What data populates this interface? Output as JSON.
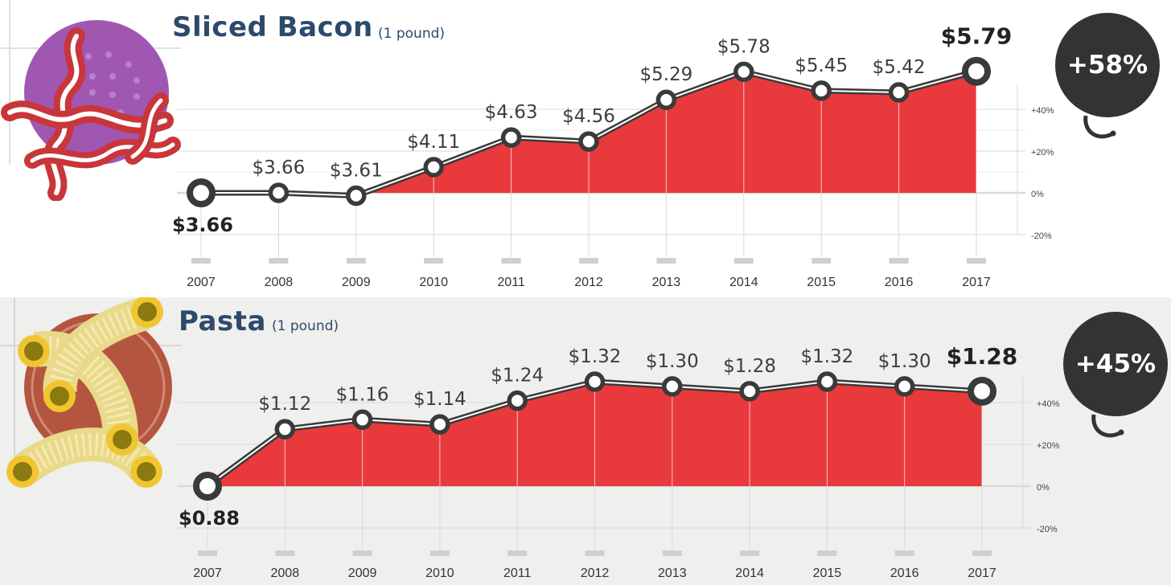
{
  "colors": {
    "fill": "#e83a3d",
    "line": "#3a3a3a",
    "title": "#2d4a6b",
    "badge": "#333333",
    "grid": "#d9d9d9"
  },
  "chart_data": [
    {
      "type": "area",
      "title": "Sliced Bacon",
      "subtitle": "(1 pound)",
      "x": [
        "2007",
        "2008",
        "2009",
        "2010",
        "2011",
        "2012",
        "2013",
        "2014",
        "2015",
        "2016",
        "2017"
      ],
      "values": [
        3.66,
        3.66,
        3.61,
        4.11,
        4.63,
        4.56,
        5.29,
        5.78,
        5.45,
        5.42,
        5.79
      ],
      "labels": [
        "$3.66",
        "$3.66",
        "$3.61",
        "$4.11",
        "$4.63",
        "$4.56",
        "$5.29",
        "$5.78",
        "$5.45",
        "$5.42",
        "$5.79"
      ],
      "change_ticks": [
        "+40%",
        "+20%",
        "0%",
        "-20%"
      ],
      "change": "+58%",
      "icon": "bacon-icon"
    },
    {
      "type": "area",
      "title": "Pasta",
      "subtitle": "(1 pound)",
      "x": [
        "2007",
        "2008",
        "2009",
        "2010",
        "2011",
        "2012",
        "2013",
        "2014",
        "2015",
        "2016",
        "2017"
      ],
      "values": [
        0.88,
        1.12,
        1.16,
        1.14,
        1.24,
        1.32,
        1.3,
        1.28,
        1.32,
        1.3,
        1.28
      ],
      "labels": [
        "$0.88",
        "$1.12",
        "$1.16",
        "$1.14",
        "$1.24",
        "$1.32",
        "$1.30",
        "$1.28",
        "$1.32",
        "$1.30",
        "$1.28"
      ],
      "change_ticks": [
        "+40%",
        "+20%",
        "0%",
        "-20%"
      ],
      "change": "+45%",
      "icon": "macaroni-icon"
    }
  ]
}
